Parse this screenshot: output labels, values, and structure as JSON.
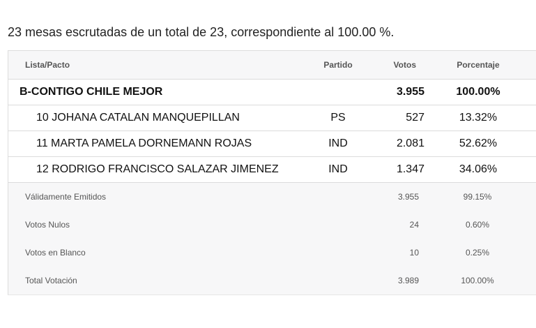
{
  "summary": "23 mesas escrutadas de un total de 23, correspondiente al 100.00 %.",
  "columns": {
    "lista": "Lista/Pacto",
    "partido": "Partido",
    "votos": "Votos",
    "porcentaje": "Porcentaje"
  },
  "lista": {
    "name": "B-CONTIGO CHILE MEJOR",
    "votos": "3.955",
    "porcentaje": "100.00%"
  },
  "candidates": [
    {
      "name": "10 JOHANA CATALAN MANQUEPILLAN",
      "partido": "PS",
      "votos": "527",
      "porcentaje": "13.32%"
    },
    {
      "name": "11 MARTA PAMELA DORNEMANN ROJAS",
      "partido": "IND",
      "votos": "2.081",
      "porcentaje": "52.62%"
    },
    {
      "name": "12 RODRIGO FRANCISCO SALAZAR JIMENEZ",
      "partido": "IND",
      "votos": "1.347",
      "porcentaje": "34.06%"
    }
  ],
  "totals": [
    {
      "label": "Válidamente Emitidos",
      "votos": "3.955",
      "porcentaje": "99.15%"
    },
    {
      "label": "Votos Nulos",
      "votos": "24",
      "porcentaje": "0.60%"
    },
    {
      "label": "Votos en Blanco",
      "votos": "10",
      "porcentaje": "0.25%"
    },
    {
      "label": "Total Votación",
      "votos": "3.989",
      "porcentaje": "100.00%"
    }
  ]
}
